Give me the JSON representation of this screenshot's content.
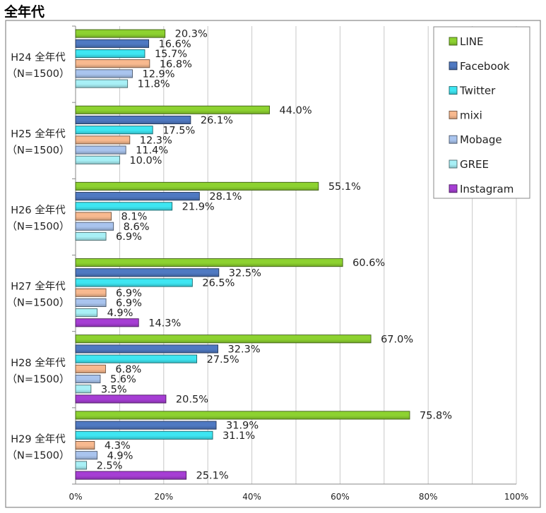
{
  "page_title": "全年代",
  "chart_data": {
    "type": "bar",
    "orientation": "horizontal",
    "title": "全年代",
    "xlabel": "",
    "ylabel": "",
    "xlim": [
      0,
      100
    ],
    "x_ticks": [
      "0%",
      "20%",
      "40%",
      "60%",
      "80%",
      "100%"
    ],
    "value_suffix": "%",
    "grid": "vertical lines every 10%",
    "legend_position": "top-right",
    "categories": [
      {
        "line1": "H24 全年代",
        "line2": "（N=1500）"
      },
      {
        "line1": "H25 全年代",
        "line2": "（N=1500）"
      },
      {
        "line1": "H26 全年代",
        "line2": "（N=1500）"
      },
      {
        "line1": "H27 全年代",
        "line2": "（N=1500）"
      },
      {
        "line1": "H28 全年代",
        "line2": "（N=1500）"
      },
      {
        "line1": "H29 全年代",
        "line2": "（N=1500）"
      }
    ],
    "series": [
      {
        "name": "LINE",
        "color": "#8dd230",
        "values": [
          20.3,
          44.0,
          55.1,
          60.6,
          67.0,
          75.8
        ]
      },
      {
        "name": "Facebook",
        "color": "#4f79c2",
        "values": [
          16.6,
          26.1,
          28.1,
          32.5,
          32.3,
          31.9
        ]
      },
      {
        "name": "Twitter",
        "color": "#3ee6f2",
        "values": [
          15.7,
          17.5,
          21.9,
          26.5,
          27.5,
          31.1
        ]
      },
      {
        "name": "mixi",
        "color": "#f8b98f",
        "values": [
          16.8,
          12.3,
          8.1,
          6.9,
          6.8,
          4.3
        ]
      },
      {
        "name": "Mobage",
        "color": "#a9c4ee",
        "values": [
          12.9,
          11.4,
          8.6,
          6.9,
          5.6,
          4.9
        ]
      },
      {
        "name": "GREE",
        "color": "#a8f0f6",
        "values": [
          11.8,
          10.0,
          6.9,
          4.9,
          3.5,
          2.5
        ]
      },
      {
        "name": "Instagram",
        "color": "#a63ed4",
        "values": [
          null,
          null,
          null,
          14.3,
          20.5,
          25.1
        ]
      }
    ]
  }
}
